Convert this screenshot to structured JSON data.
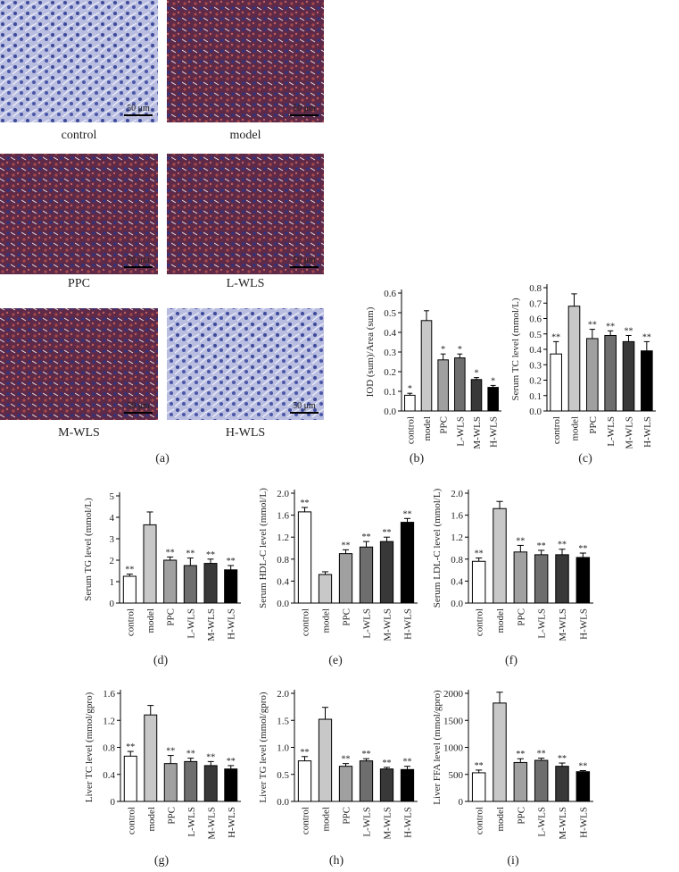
{
  "panel_a": {
    "caption": "(a)",
    "images": [
      {
        "label": "control",
        "scale": "50 μm"
      },
      {
        "label": "model",
        "scale": "50 μm"
      },
      {
        "label": "PPC",
        "scale": "50 μm"
      },
      {
        "label": "L-WLS",
        "scale": "50 μm"
      },
      {
        "label": "M-WLS",
        "scale": "50 μm"
      },
      {
        "label": "H-WLS",
        "scale": "50 μm"
      }
    ]
  },
  "chart_data": [
    {
      "type": "bar",
      "caption": "(b)",
      "ylabel": "IOD (sum)/Area (sum)",
      "categories": [
        "control",
        "model",
        "PPC",
        "L-WLS",
        "M-WLS",
        "H-WLS"
      ],
      "values": [
        0.08,
        0.46,
        0.26,
        0.27,
        0.16,
        0.12
      ],
      "errors": [
        0.01,
        0.05,
        0.03,
        0.02,
        0.01,
        0.01
      ],
      "significance": [
        "*",
        null,
        "*",
        "*",
        "*",
        "*"
      ],
      "colors": [
        "#ffffff",
        "#c8c8c8",
        "#a0a0a0",
        "#6e6e6e",
        "#383838",
        "#000000"
      ],
      "ylim": [
        0,
        0.6
      ],
      "yticks": [
        {
          "value": 0,
          "label": "0.0"
        },
        0.1,
        0.2,
        0.3,
        0.4,
        0.5,
        0.6
      ]
    },
    {
      "type": "bar",
      "caption": "(c)",
      "ylabel": "Serum TC level (mmol/L)",
      "categories": [
        "control",
        "model",
        "PPC",
        "L-WLS",
        "M-WLS",
        "H-WLS"
      ],
      "values": [
        0.37,
        0.68,
        0.47,
        0.49,
        0.45,
        0.39
      ],
      "errors": [
        0.08,
        0.08,
        0.06,
        0.03,
        0.04,
        0.06
      ],
      "significance": [
        "**",
        null,
        "**",
        "**",
        "**",
        "**"
      ],
      "colors": [
        "#ffffff",
        "#c8c8c8",
        "#a0a0a0",
        "#6e6e6e",
        "#383838",
        "#000000"
      ],
      "ylim": [
        0,
        0.8
      ],
      "yticks": [
        {
          "value": 0,
          "label": "0.0"
        },
        0.1,
        0.2,
        0.3,
        0.4,
        0.5,
        0.6,
        0.7,
        0.8
      ]
    },
    {
      "type": "bar",
      "caption": "(d)",
      "ylabel": "Serum TG level (mmol/L)",
      "categories": [
        "control",
        "model",
        "PPC",
        "L-WLS",
        "M-WLS",
        "H-WLS"
      ],
      "values": [
        1.25,
        3.65,
        2.0,
        1.75,
        1.85,
        1.55
      ],
      "errors": [
        0.1,
        0.6,
        0.15,
        0.35,
        0.2,
        0.2
      ],
      "significance": [
        "**",
        null,
        "**",
        "**",
        "**",
        "**"
      ],
      "colors": [
        "#ffffff",
        "#c8c8c8",
        "#a0a0a0",
        "#6e6e6e",
        "#383838",
        "#000000"
      ],
      "ylim": [
        0,
        5
      ],
      "yticks": [
        0,
        1,
        2,
        3,
        4,
        5
      ]
    },
    {
      "type": "bar",
      "caption": "(e)",
      "ylabel": "Serum HDL-C level (mmol/L)",
      "categories": [
        "control",
        "model",
        "PPC",
        "L-WLS",
        "M-WLS",
        "H-WLS"
      ],
      "values": [
        1.66,
        0.52,
        0.9,
        1.02,
        1.12,
        1.47
      ],
      "errors": [
        0.08,
        0.05,
        0.07,
        0.1,
        0.08,
        0.07
      ],
      "significance": [
        "**",
        null,
        "**",
        "**",
        "**",
        "**"
      ],
      "colors": [
        "#ffffff",
        "#c8c8c8",
        "#a0a0a0",
        "#6e6e6e",
        "#383838",
        "#000000"
      ],
      "ylim": [
        0,
        2
      ],
      "yticks": [
        {
          "value": 0,
          "label": "0.0"
        },
        0.4,
        0.8,
        1.2,
        1.6,
        {
          "value": 2,
          "label": "2.0"
        }
      ]
    },
    {
      "type": "bar",
      "caption": "(f)",
      "ylabel": "Serum LDL-C level (mmol/L)",
      "categories": [
        "control",
        "model",
        "PPC",
        "L-WLS",
        "M-WLS",
        "H-WLS"
      ],
      "values": [
        0.76,
        1.72,
        0.93,
        0.88,
        0.88,
        0.83
      ],
      "errors": [
        0.06,
        0.13,
        0.12,
        0.08,
        0.1,
        0.08
      ],
      "significance": [
        "**",
        null,
        "**",
        "**",
        "**",
        "**"
      ],
      "colors": [
        "#ffffff",
        "#c8c8c8",
        "#a0a0a0",
        "#6e6e6e",
        "#383838",
        "#000000"
      ],
      "ylim": [
        0,
        2
      ],
      "yticks": [
        {
          "value": 0,
          "label": "0.0"
        },
        0.4,
        0.8,
        1.2,
        1.6,
        {
          "value": 2,
          "label": "2.0"
        }
      ]
    },
    {
      "type": "bar",
      "caption": "(g)",
      "ylabel": "Liver TC level (mmol/gpro)",
      "categories": [
        "control",
        "model",
        "PPC",
        "L-WLS",
        "M-WLS",
        "H-WLS"
      ],
      "values": [
        0.67,
        1.28,
        0.56,
        0.59,
        0.53,
        0.48
      ],
      "errors": [
        0.07,
        0.14,
        0.12,
        0.05,
        0.06,
        0.05
      ],
      "significance": [
        "**",
        null,
        "**",
        "**",
        "**",
        "**"
      ],
      "colors": [
        "#ffffff",
        "#c8c8c8",
        "#a0a0a0",
        "#6e6e6e",
        "#383838",
        "#000000"
      ],
      "ylim": [
        0,
        1.6
      ],
      "yticks": [
        0,
        0.4,
        0.8,
        1.2,
        1.6
      ]
    },
    {
      "type": "bar",
      "caption": "(h)",
      "ylabel": "Liver TG level (mmol/gpro)",
      "categories": [
        "control",
        "model",
        "PPC",
        "L-WLS",
        "M-WLS",
        "H-WLS"
      ],
      "values": [
        0.75,
        1.52,
        0.65,
        0.75,
        0.6,
        0.59
      ],
      "errors": [
        0.08,
        0.22,
        0.05,
        0.04,
        0.03,
        0.06
      ],
      "significance": [
        "**",
        null,
        "**",
        "**",
        "**",
        "**"
      ],
      "colors": [
        "#ffffff",
        "#c8c8c8",
        "#a0a0a0",
        "#6e6e6e",
        "#383838",
        "#000000"
      ],
      "ylim": [
        0,
        2
      ],
      "yticks": [
        {
          "value": 0,
          "label": "0.0"
        },
        0.5,
        {
          "value": 1,
          "label": "1.0"
        },
        1.5,
        {
          "value": 2,
          "label": "2.0"
        }
      ]
    },
    {
      "type": "bar",
      "caption": "(i)",
      "ylabel": "Liver FFA level (mmol/gpro)",
      "categories": [
        "control",
        "model",
        "PPC",
        "L-WLS",
        "M-WLS",
        "H-WLS"
      ],
      "values": [
        530,
        1820,
        720,
        760,
        650,
        550
      ],
      "errors": [
        50,
        200,
        70,
        40,
        60,
        20
      ],
      "significance": [
        "**",
        null,
        "**",
        "**",
        "**",
        "**"
      ],
      "colors": [
        "#ffffff",
        "#c8c8c8",
        "#a0a0a0",
        "#6e6e6e",
        "#383838",
        "#000000"
      ],
      "ylim": [
        0,
        2000
      ],
      "yticks": [
        0,
        500,
        1000,
        1500,
        2000
      ]
    }
  ]
}
